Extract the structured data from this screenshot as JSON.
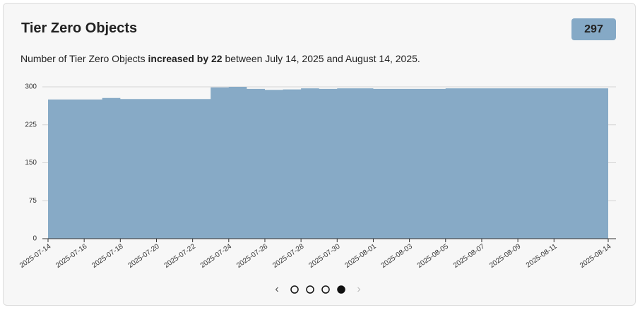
{
  "header": {
    "title": "Tier Zero Objects",
    "badge": 297
  },
  "description": {
    "prefix": "Number of Tier Zero Objects",
    "emphasis": "increased by 22",
    "suffix": "between July 14, 2025 and August 14, 2025."
  },
  "chart_data": {
    "type": "area",
    "categories": [
      "2025-07-14",
      null,
      "2025-07-16",
      null,
      "2025-07-18",
      null,
      "2025-07-20",
      null,
      "2025-07-22",
      null,
      "2025-07-24",
      null,
      "2025-07-26",
      null,
      "2025-07-28",
      null,
      "2025-07-30",
      null,
      "2025-08-01",
      null,
      "2025-08-03",
      null,
      "2025-08-05",
      null,
      "2025-08-07",
      null,
      "2025-08-09",
      null,
      "2025-08-11",
      null,
      null,
      "2025-08-14"
    ],
    "values": [
      275,
      275,
      275,
      278,
      276,
      276,
      276,
      276,
      276,
      299,
      300,
      296,
      294,
      295,
      297,
      296,
      297,
      297,
      296,
      296,
      296,
      296,
      297,
      297,
      297,
      297,
      297,
      297,
      297,
      297,
      297,
      297
    ],
    "color": "#87aac6",
    "step": true,
    "ylim": [
      0,
      300
    ],
    "yticks": [
      0,
      75,
      150,
      225,
      300
    ],
    "grid": true
  },
  "pager": {
    "pages": 4,
    "active": 4
  }
}
